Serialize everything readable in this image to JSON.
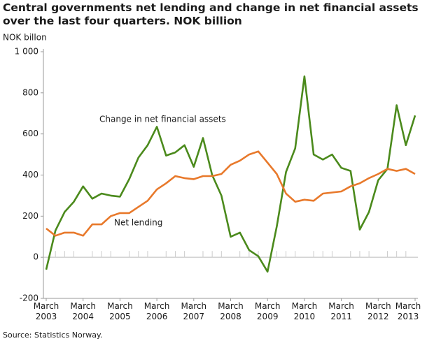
{
  "chart_data": {
    "type": "line",
    "title": "Central governments net lending and change in net financial assets over the last four quarters. NOK billion",
    "y_label": "NOK billon",
    "source": "Source: Statistics Norway.",
    "categories": [
      "March 2003",
      null,
      null,
      null,
      "March 2004",
      null,
      null,
      null,
      "March 2005",
      null,
      null,
      null,
      "March 2006",
      null,
      null,
      null,
      "March 2007",
      null,
      null,
      null,
      "March 2008",
      null,
      null,
      null,
      "March 2009",
      null,
      null,
      null,
      "March 2010",
      null,
      null,
      null,
      "March 2011",
      null,
      null,
      null,
      "March 2012",
      null,
      null,
      null,
      "March 2013"
    ],
    "series": [
      {
        "name": "Change in net financial assets",
        "color": "#4b8a1c",
        "values": [
          -60,
          130,
          220,
          270,
          345,
          285,
          310,
          300,
          295,
          380,
          485,
          545,
          635,
          495,
          510,
          545,
          440,
          580,
          400,
          300,
          100,
          120,
          35,
          5,
          -70,
          150,
          415,
          530,
          880,
          500,
          475,
          500,
          435,
          420,
          135,
          220,
          375,
          430,
          740,
          545,
          690
        ]
      },
      {
        "name": "Net lending",
        "color": "#e8792b",
        "values": [
          140,
          105,
          120,
          120,
          105,
          160,
          160,
          200,
          215,
          215,
          245,
          275,
          330,
          360,
          395,
          385,
          380,
          395,
          395,
          405,
          450,
          470,
          500,
          515,
          460,
          405,
          310,
          270,
          280,
          275,
          310,
          315,
          320,
          345,
          360,
          385,
          405,
          430,
          420,
          430,
          405
        ]
      }
    ],
    "ylim": [
      -200,
      1000
    ],
    "yticks": [
      -200,
      0,
      200,
      400,
      600,
      800,
      {
        "value": 1000,
        "label": "1 000"
      }
    ],
    "grid": false
  }
}
